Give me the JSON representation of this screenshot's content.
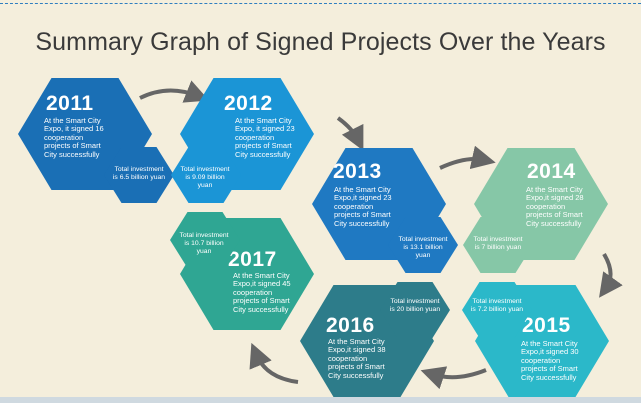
{
  "title": "Summary Graph of Signed Projects Over the Years",
  "colors": {
    "y2011": "#1a6fb5",
    "y2012": "#1b95d6",
    "y2013": "#1f79c2",
    "y2014": "#86c7a7",
    "y2015": "#2bb8c9",
    "y2016": "#2d7c8a",
    "y2017": "#2fa693",
    "arrow": "#666666"
  },
  "items": [
    {
      "year": "2011",
      "desc": "At the Smart City Expo, it signed 16 cooperation projects of Smart City successfully",
      "investment": "Total investment is 6.5 billion yuan"
    },
    {
      "year": "2012",
      "desc": "At the Smart City Expo, it signed 23 cooperation projects of Smart City successfully",
      "investment": "Total investment is 9.09 billion yuan"
    },
    {
      "year": "2013",
      "desc": "At the Smart City Expo,it signed 23 cooperation projects of Smart City successfully",
      "investment": "Total investment is 13.1 billion yuan"
    },
    {
      "year": "2014",
      "desc": "At the Smart City Expo,it signed 28 cooperation projects of Smart City successfully",
      "investment": "Total investment is 7 billion yuan"
    },
    {
      "year": "2015",
      "desc": "At the Smart City Expo,it signed 30 cooperation projects of Smart City successfully",
      "investment": "Total investment is 7.2 billion yuan"
    },
    {
      "year": "2016",
      "desc": "At the Smart City Expo,it signed 38 cooperation projects of Smart City successfully",
      "investment": "Total investment is 20 billion yuan"
    },
    {
      "year": "2017",
      "desc": "At the Smart City Expo,it signed 45 cooperation projects of Smart City successfully",
      "investment": "Total investment is 10.7 billion yuan"
    }
  ]
}
